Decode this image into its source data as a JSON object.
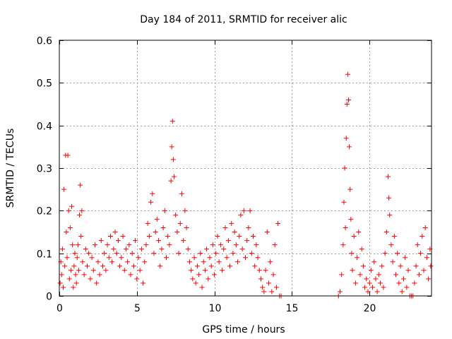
{
  "chart_data": {
    "type": "scatter",
    "title": "Day 184 of 2011, SRMTID for receiver alic",
    "xlabel": "GPS time / hours",
    "ylabel": "SRMTID / TECUs",
    "xlim": [
      0,
      24
    ],
    "ylim": [
      0,
      0.6
    ],
    "xticks": [
      0,
      5,
      10,
      15,
      20
    ],
    "xtick_labels": [
      "0",
      "5",
      "10",
      "15",
      "20"
    ],
    "yticks": [
      0,
      0.1,
      0.2,
      0.3,
      0.4,
      0.5,
      0.6
    ],
    "ytick_labels": [
      "0",
      "0.1",
      "0.2",
      "0.3",
      "0.4",
      "0.5",
      "0.6"
    ],
    "grid": true,
    "marker": "+",
    "series": [
      {
        "name": "SRMTID",
        "color": "#ff0000",
        "points": [
          [
            0.05,
            0.03
          ],
          [
            0.1,
            0.08
          ],
          [
            0.15,
            0.05
          ],
          [
            0.2,
            0.11
          ],
          [
            0.25,
            0.02
          ],
          [
            0.3,
            0.25
          ],
          [
            0.35,
            0.07
          ],
          [
            0.4,
            0.33
          ],
          [
            0.45,
            0.15
          ],
          [
            0.5,
            0.09
          ],
          [
            0.55,
            0.33
          ],
          [
            0.6,
            0.2
          ],
          [
            0.65,
            0.04
          ],
          [
            0.7,
            0.16
          ],
          [
            0.75,
            0.06
          ],
          [
            0.8,
            0.21
          ],
          [
            0.85,
            0.12
          ],
          [
            0.9,
            0.02
          ],
          [
            0.95,
            0.07
          ],
          [
            1.0,
            0.1
          ],
          [
            1.05,
            0.05
          ],
          [
            1.1,
            0.03
          ],
          [
            1.15,
            0.09
          ],
          [
            1.2,
            0.12
          ],
          [
            1.25,
            0.06
          ],
          [
            1.3,
            0.19
          ],
          [
            1.35,
            0.26
          ],
          [
            1.4,
            0.14
          ],
          [
            1.45,
            0.2
          ],
          [
            1.5,
            0.08
          ],
          [
            1.6,
            0.05
          ],
          [
            1.7,
            0.11
          ],
          [
            1.8,
            0.07
          ],
          [
            1.9,
            0.1
          ],
          [
            2.0,
            0.04
          ],
          [
            2.1,
            0.09
          ],
          [
            2.2,
            0.06
          ],
          [
            2.3,
            0.12
          ],
          [
            2.4,
            0.03
          ],
          [
            2.5,
            0.08
          ],
          [
            2.6,
            0.05
          ],
          [
            2.7,
            0.13
          ],
          [
            2.8,
            0.07
          ],
          [
            2.9,
            0.1
          ],
          [
            3.0,
            0.06
          ],
          [
            3.1,
            0.12
          ],
          [
            3.2,
            0.09
          ],
          [
            3.3,
            0.14
          ],
          [
            3.4,
            0.08
          ],
          [
            3.5,
            0.11
          ],
          [
            3.6,
            0.15
          ],
          [
            3.7,
            0.1
          ],
          [
            3.8,
            0.13
          ],
          [
            3.9,
            0.07
          ],
          [
            4.0,
            0.09
          ],
          [
            4.1,
            0.14
          ],
          [
            4.2,
            0.06
          ],
          [
            4.3,
            0.11
          ],
          [
            4.4,
            0.08
          ],
          [
            4.5,
            0.12
          ],
          [
            4.6,
            0.05
          ],
          [
            4.7,
            0.1
          ],
          [
            4.8,
            0.07
          ],
          [
            4.9,
            0.13
          ],
          [
            5.0,
            0.04
          ],
          [
            5.1,
            0.09
          ],
          [
            5.2,
            0.06
          ],
          [
            5.3,
            0.11
          ],
          [
            5.4,
            0.03
          ],
          [
            5.5,
            0.08
          ],
          [
            5.6,
            0.12
          ],
          [
            5.7,
            0.17
          ],
          [
            5.8,
            0.14
          ],
          [
            5.9,
            0.22
          ],
          [
            6.0,
            0.24
          ],
          [
            6.1,
            0.1
          ],
          [
            6.2,
            0.15
          ],
          [
            6.3,
            0.18
          ],
          [
            6.4,
            0.13
          ],
          [
            6.5,
            0.07
          ],
          [
            6.6,
            0.11
          ],
          [
            6.7,
            0.16
          ],
          [
            6.8,
            0.2
          ],
          [
            6.9,
            0.09
          ],
          [
            7.0,
            0.14
          ],
          [
            7.1,
            0.12
          ],
          [
            7.2,
            0.27
          ],
          [
            7.25,
            0.35
          ],
          [
            7.3,
            0.41
          ],
          [
            7.35,
            0.32
          ],
          [
            7.4,
            0.28
          ],
          [
            7.5,
            0.19
          ],
          [
            7.6,
            0.15
          ],
          [
            7.7,
            0.1
          ],
          [
            7.8,
            0.17
          ],
          [
            7.9,
            0.24
          ],
          [
            8.0,
            0.13
          ],
          [
            8.1,
            0.2
          ],
          [
            8.2,
            0.16
          ],
          [
            8.3,
            0.11
          ],
          [
            8.4,
            0.08
          ],
          [
            8.5,
            0.06
          ],
          [
            8.6,
            0.04
          ],
          [
            8.7,
            0.09
          ],
          [
            8.8,
            0.03
          ],
          [
            8.9,
            0.07
          ],
          [
            9.0,
            0.05
          ],
          [
            9.1,
            0.1
          ],
          [
            9.2,
            0.02
          ],
          [
            9.3,
            0.08
          ],
          [
            9.4,
            0.06
          ],
          [
            9.5,
            0.11
          ],
          [
            9.6,
            0.04
          ],
          [
            9.7,
            0.09
          ],
          [
            9.8,
            0.07
          ],
          [
            9.9,
            0.12
          ],
          [
            10.0,
            0.05
          ],
          [
            10.1,
            0.1
          ],
          [
            10.2,
            0.14
          ],
          [
            10.3,
            0.08
          ],
          [
            10.4,
            0.12
          ],
          [
            10.5,
            0.06
          ],
          [
            10.6,
            0.11
          ],
          [
            10.7,
            0.16
          ],
          [
            10.8,
            0.09
          ],
          [
            10.9,
            0.13
          ],
          [
            11.0,
            0.07
          ],
          [
            11.1,
            0.17
          ],
          [
            11.2,
            0.1
          ],
          [
            11.3,
            0.15
          ],
          [
            11.4,
            0.12
          ],
          [
            11.5,
            0.08
          ],
          [
            11.6,
            0.14
          ],
          [
            11.7,
            0.19
          ],
          [
            11.8,
            0.11
          ],
          [
            11.9,
            0.2
          ],
          [
            12.0,
            0.09
          ],
          [
            12.1,
            0.13
          ],
          [
            12.2,
            0.16
          ],
          [
            12.3,
            0.2
          ],
          [
            12.4,
            0.1
          ],
          [
            12.5,
            0.14
          ],
          [
            12.6,
            0.07
          ],
          [
            12.7,
            0.12
          ],
          [
            12.8,
            0.09
          ],
          [
            12.9,
            0.06
          ],
          [
            13.0,
            0.04
          ],
          [
            13.1,
            0.02
          ],
          [
            13.2,
            0.01
          ],
          [
            13.3,
            0.06
          ],
          [
            13.4,
            0.15
          ],
          [
            13.5,
            0.03
          ],
          [
            13.6,
            0.08
          ],
          [
            13.7,
            0.01
          ],
          [
            13.8,
            0.05
          ],
          [
            13.9,
            0.12
          ],
          [
            14.0,
            0.02
          ],
          [
            14.1,
            0.17
          ],
          [
            14.2,
            0.0
          ],
          [
            14.3,
            0.0
          ],
          [
            18.0,
            0.0
          ],
          [
            18.1,
            0.01
          ],
          [
            18.2,
            0.05
          ],
          [
            18.3,
            0.12
          ],
          [
            18.35,
            0.22
          ],
          [
            18.4,
            0.3
          ],
          [
            18.45,
            0.16
          ],
          [
            18.5,
            0.37
          ],
          [
            18.55,
            0.45
          ],
          [
            18.6,
            0.52
          ],
          [
            18.65,
            0.46
          ],
          [
            18.7,
            0.35
          ],
          [
            18.75,
            0.25
          ],
          [
            18.8,
            0.18
          ],
          [
            18.85,
            0.1
          ],
          [
            18.9,
            0.06
          ],
          [
            19.0,
            0.14
          ],
          [
            19.1,
            0.03
          ],
          [
            19.2,
            0.09
          ],
          [
            19.3,
            0.15
          ],
          [
            19.4,
            0.05
          ],
          [
            19.5,
            0.11
          ],
          [
            19.6,
            0.07
          ],
          [
            19.7,
            0.02
          ],
          [
            19.8,
            0.04
          ],
          [
            19.9,
            0.01
          ],
          [
            20.0,
            0.03
          ],
          [
            20.1,
            0.06
          ],
          [
            20.2,
            0.02
          ],
          [
            20.3,
            0.08
          ],
          [
            20.4,
            0.04
          ],
          [
            20.5,
            0.01
          ],
          [
            20.6,
            0.05
          ],
          [
            20.7,
            0.03
          ],
          [
            20.8,
            0.07
          ],
          [
            20.9,
            0.02
          ],
          [
            21.0,
            0.1
          ],
          [
            21.1,
            0.15
          ],
          [
            21.2,
            0.28
          ],
          [
            21.25,
            0.23
          ],
          [
            21.3,
            0.19
          ],
          [
            21.4,
            0.12
          ],
          [
            21.5,
            0.08
          ],
          [
            21.6,
            0.14
          ],
          [
            21.7,
            0.05
          ],
          [
            21.8,
            0.1
          ],
          [
            21.9,
            0.03
          ],
          [
            22.0,
            0.07
          ],
          [
            22.1,
            0.01
          ],
          [
            22.2,
            0.04
          ],
          [
            22.3,
            0.09
          ],
          [
            22.4,
            0.02
          ],
          [
            22.5,
            0.06
          ],
          [
            22.6,
            0.0
          ],
          [
            22.7,
            0.0
          ],
          [
            22.8,
            0.0
          ],
          [
            22.9,
            0.03
          ],
          [
            23.0,
            0.07
          ],
          [
            23.1,
            0.12
          ],
          [
            23.2,
            0.05
          ],
          [
            23.3,
            0.1
          ],
          [
            23.4,
            0.14
          ],
          [
            23.5,
            0.06
          ],
          [
            23.6,
            0.16
          ],
          [
            23.7,
            0.09
          ],
          [
            23.8,
            0.04
          ],
          [
            23.9,
            0.11
          ],
          [
            23.95,
            0.07
          ]
        ]
      }
    ]
  }
}
